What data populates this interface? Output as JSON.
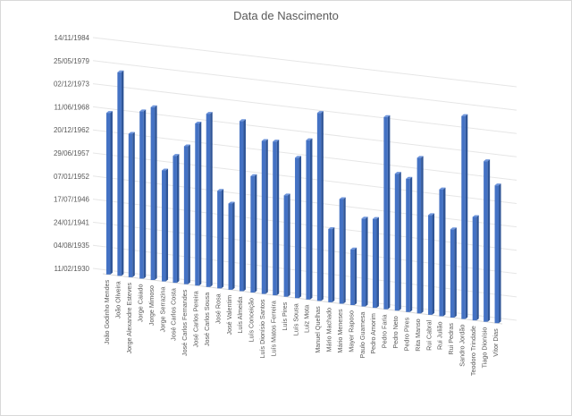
{
  "chart_data": {
    "type": "bar",
    "title": "Data de Nascimento",
    "xlabel": "",
    "ylabel": "",
    "grid": true,
    "legend": "none",
    "bar_color": "#4472C4",
    "bar_dark": "#2F5597",
    "bar_light": "#6E95DC",
    "gridline_color": "#e6e6e6",
    "text_color": "#595959",
    "y_tick_labels": [
      "11/02/1930",
      "04/08/1935",
      "24/01/1941",
      "17/07/1946",
      "07/01/1952",
      "29/06/1957",
      "20/12/1962",
      "11/06/1968",
      "02/12/1973",
      "25/05/1979",
      "14/11/1984"
    ],
    "ylim": [
      "11/02/1930",
      "14/11/1984"
    ],
    "categories": [
      "João Godinho Mendes",
      "João Oliveira",
      "Jorge Alexandre Esteves",
      "Jorge Caiado",
      "Jorge Mimoso",
      "Jorge Serrazina",
      "José Carlos Costa",
      "José Carlos Fernandes",
      "José Carlos Pereira",
      "José Carlos Sousa",
      "José Rosa",
      "José Valentim",
      "Luís Almeida",
      "Luís Conceição",
      "Luís Dionísio Santos",
      "Luís Matos Ferreira",
      "Luís Pires",
      "Luís Sousa",
      "Luiz Mota",
      "Manuel Quelhas",
      "Mário Machado",
      "Mário Meneses",
      "Mayer Raposo",
      "Paulo Guarnesa",
      "Pedro Amorim",
      "Pedro Faria",
      "Pedro Neto",
      "Pedro Pires",
      "Rita Manso",
      "Rui Cabral",
      "Rui Julião",
      "Rui Pedras",
      "Sandro Jordão",
      "Teodoro Trindade",
      "Tiago Dionísio",
      "Vítor Dias"
    ],
    "values": [
      "15/06/1968",
      "30/05/1978",
      "26/02/1964",
      "25/10/1969",
      "15/02/1971",
      "22/06/1956",
      "04/04/1960",
      "07/11/1962",
      "01/08/1968",
      "16/03/1971",
      "26/04/1953",
      "21/08/1950",
      "20/06/1970",
      "19/10/1957",
      "30/05/1966",
      "11/08/1966",
      "24/03/1954",
      "14/06/1963",
      "28/11/1967",
      "31/08/1974",
      "13/08/1947",
      "07/01/1955",
      "04/07/1943",
      "03/02/1951",
      "07/05/1951",
      "29/08/1975",
      "20/08/1962",
      "19/10/1961",
      "16/01/1967",
      "24/11/1953",
      "14/04/1960",
      "26/03/1951",
      "22/02/1978",
      "13/10/1954",
      "11/03/1968",
      "08/11/1962"
    ]
  }
}
